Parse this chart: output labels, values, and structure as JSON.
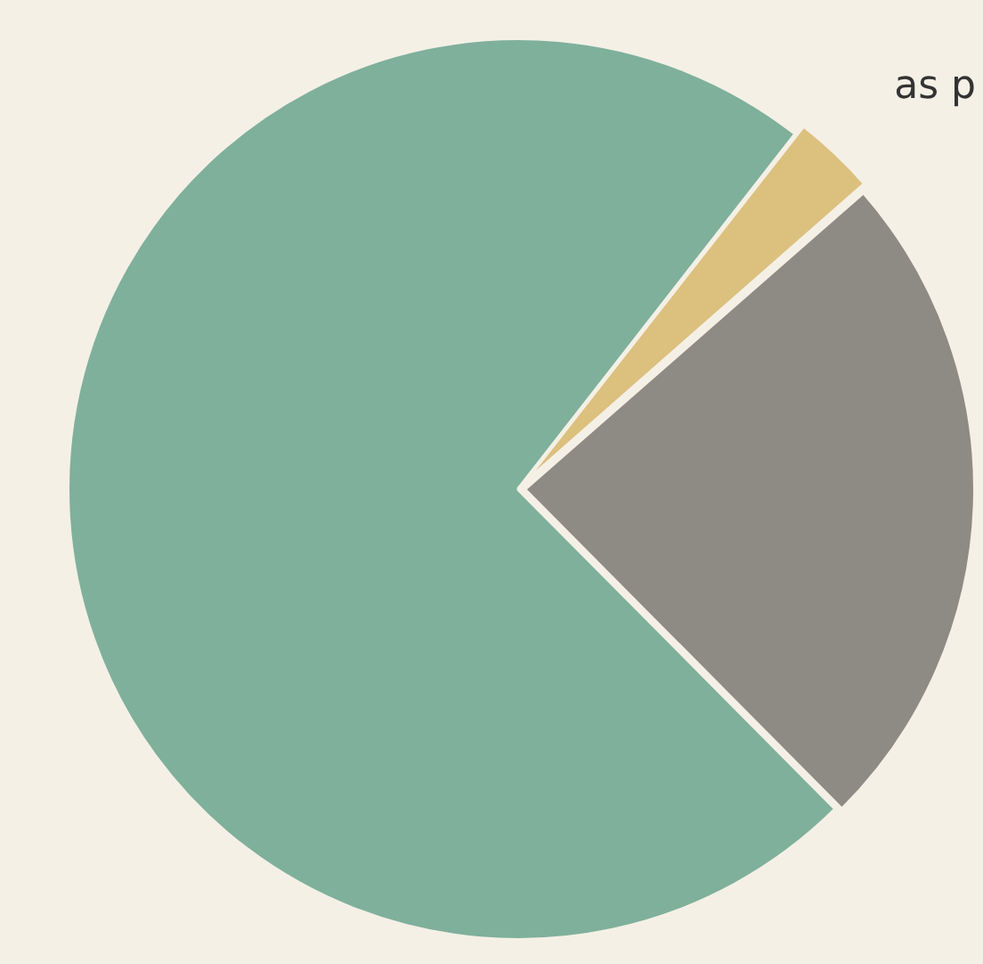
{
  "chart_data": {
    "type": "pie",
    "categories": [
      null,
      null,
      null
    ],
    "values": [
      3,
      24,
      73
    ],
    "colors": [
      "#dcc07e",
      "#8e8b85",
      "#7fb09c"
    ],
    "annotations": [
      "as p"
    ],
    "legend": false
  }
}
